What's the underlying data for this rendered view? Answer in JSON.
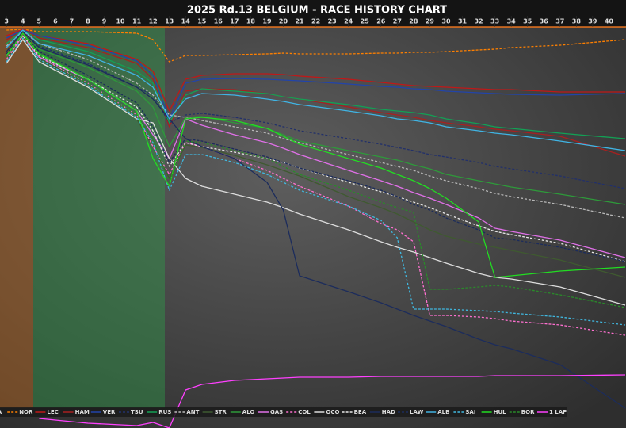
{
  "chart_data": {
    "type": "line",
    "title": "2025 Rd.13 BELGIUM - RACE HISTORY CHART",
    "x": [
      3,
      4,
      5,
      8,
      11,
      12,
      13,
      14,
      15,
      17,
      19,
      20,
      21,
      24,
      26,
      27,
      28,
      29,
      30,
      32,
      33,
      34,
      37,
      41
    ],
    "xlim": [
      2.6,
      41.05
    ],
    "xticks": [
      3,
      4,
      5,
      6,
      7,
      8,
      9,
      10,
      11,
      12,
      13,
      14,
      15,
      16,
      17,
      18,
      19,
      20,
      21,
      22,
      23,
      24,
      25,
      26,
      27,
      28,
      29,
      30,
      31,
      32,
      33,
      34,
      35,
      36,
      37,
      38,
      39,
      40
    ],
    "ylim": [
      0,
      510
    ],
    "series": [
      {
        "name": "PIA",
        "color": "#ff8000",
        "dashed": false,
        "values": [
          506,
          506,
          506,
          506,
          506,
          506,
          506,
          506,
          506,
          506,
          506,
          506,
          506,
          506,
          506,
          506,
          506,
          506,
          506,
          506,
          506,
          506,
          506,
          506
        ]
      },
      {
        "name": "NOR",
        "color": "#ff8000",
        "dashed": true,
        "values": [
          502,
          503,
          500,
          500,
          498,
          490,
          462,
          470,
          470,
          471,
          472,
          473,
          472,
          472,
          473,
          473,
          474,
          474,
          475,
          477,
          478,
          480,
          483,
          490
        ]
      },
      {
        "name": "LEC",
        "color": "#c01818",
        "dashed": false,
        "values": [
          495,
          503,
          495,
          485,
          465,
          450,
          400,
          440,
          445,
          447,
          447,
          446,
          444,
          440,
          436,
          434,
          432,
          431,
          430,
          428,
          427,
          427,
          424,
          424
        ]
      },
      {
        "name": "HAM",
        "color": "#a82020",
        "dashed": false,
        "values": [
          490,
          502,
          492,
          480,
          460,
          440,
          380,
          425,
          428,
          427,
          422,
          418,
          415,
          405,
          398,
          395,
          392,
          388,
          385,
          380,
          377,
          375,
          368,
          343
        ]
      },
      {
        "name": "VER",
        "color": "#2244aa",
        "dashed": false,
        "values": [
          492,
          502,
          495,
          483,
          463,
          445,
          390,
          435,
          440,
          441,
          440,
          439,
          438,
          434,
          431,
          430,
          428,
          427,
          425,
          423,
          422,
          421,
          420,
          422
        ]
      },
      {
        "name": "TSU",
        "color": "#22306a",
        "dashed": true,
        "values": [
          480,
          500,
          482,
          460,
          430,
          420,
          385,
          395,
          397,
          392,
          385,
          380,
          375,
          365,
          358,
          354,
          350,
          345,
          342,
          335,
          330,
          327,
          318,
          302
        ]
      },
      {
        "name": "RUS",
        "color": "#13a055",
        "dashed": false,
        "values": [
          485,
          502,
          490,
          475,
          450,
          435,
          385,
          420,
          428,
          425,
          422,
          418,
          415,
          408,
          402,
          400,
          398,
          395,
          390,
          384,
          380,
          378,
          372,
          365
        ]
      },
      {
        "name": "ANT",
        "color": "#b8b8b8",
        "dashed": true,
        "values": [
          482,
          500,
          485,
          465,
          435,
          420,
          395,
          392,
          388,
          380,
          372,
          365,
          360,
          345,
          335,
          330,
          325,
          318,
          312,
          302,
          296,
          292,
          282,
          265
        ]
      },
      {
        "name": "STR",
        "color": "#3f5a30",
        "dashed": false,
        "values": [
          465,
          494,
          468,
          430,
          390,
          355,
          315,
          357,
          354,
          344,
          332,
          325,
          318,
          292,
          278,
          270,
          260,
          250,
          242,
          232,
          228,
          224,
          212,
          190
        ]
      },
      {
        "name": "ALO",
        "color": "#2e9a3a",
        "dashed": false,
        "values": [
          475,
          500,
          478,
          455,
          425,
          405,
          355,
          392,
          393,
          385,
          378,
          370,
          362,
          350,
          342,
          338,
          332,
          327,
          320,
          312,
          308,
          304,
          295,
          282
        ]
      },
      {
        "name": "GAS",
        "color": "#e070e8",
        "dashed": false,
        "values": [
          470,
          495,
          468,
          440,
          400,
          370,
          340,
          390,
          382,
          370,
          360,
          353,
          345,
          325,
          312,
          305,
          297,
          290,
          282,
          265,
          252,
          248,
          237,
          215
        ]
      },
      {
        "name": "COL",
        "color": "#ff70d0",
        "dashed": true,
        "values": [
          465,
          495,
          468,
          435,
          395,
          355,
          320,
          360,
          355,
          340,
          325,
          315,
          305,
          280,
          258,
          250,
          235,
          142,
          142,
          140,
          138,
          135,
          130,
          117
        ]
      },
      {
        "name": "OCO",
        "color": "#dddddd",
        "dashed": false,
        "values": [
          460,
          490,
          462,
          430,
          390,
          385,
          340,
          315,
          305,
          295,
          285,
          278,
          270,
          250,
          235,
          228,
          222,
          215,
          208,
          195,
          190,
          188,
          178,
          155
        ]
      },
      {
        "name": "BEA",
        "color": "#e8e8e8",
        "dashed": true,
        "values": [
          468,
          495,
          470,
          440,
          405,
          375,
          330,
          360,
          355,
          348,
          340,
          335,
          328,
          310,
          298,
          292,
          285,
          278,
          270,
          255,
          248,
          244,
          233,
          210
        ]
      },
      {
        "name": "HAD",
        "color": "#1c2c5c",
        "dashed": false,
        "values": [
          475,
          500,
          480,
          458,
          430,
          415,
          390,
          365,
          355,
          340,
          310,
          275,
          192,
          172,
          158,
          150,
          142,
          135,
          128,
          112,
          105,
          100,
          80,
          25
        ]
      },
      {
        "name": "LAW",
        "color": "#1c2c5c",
        "dashed": true,
        "values": [
          472,
          498,
          475,
          445,
          410,
          380,
          335,
          365,
          362,
          352,
          342,
          335,
          328,
          312,
          300,
          292,
          282,
          275,
          265,
          250,
          240,
          238,
          228,
          210
        ]
      },
      {
        "name": "ALB",
        "color": "#40b4e4",
        "dashed": false,
        "values": [
          480,
          502,
          485,
          470,
          445,
          430,
          390,
          415,
          422,
          420,
          415,
          412,
          408,
          400,
          394,
          390,
          388,
          385,
          380,
          375,
          372,
          370,
          362,
          350
        ]
      },
      {
        "name": "SAI",
        "color": "#40b8e0",
        "dashed": true,
        "values": [
          462,
          492,
          465,
          432,
          392,
          360,
          300,
          345,
          345,
          335,
          320,
          310,
          300,
          280,
          262,
          240,
          150,
          150,
          150,
          148,
          147,
          145,
          140,
          130
        ]
      },
      {
        "name": "HUL",
        "color": "#22dd22",
        "dashed": false,
        "values": [
          470,
          498,
          472,
          440,
          400,
          340,
          305,
          390,
          392,
          388,
          378,
          368,
          358,
          340,
          328,
          320,
          312,
          302,
          290,
          260,
          190,
          192,
          198,
          203
        ]
      },
      {
        "name": "BOR",
        "color": "#2a8a2a",
        "dashed": true,
        "values": [
          468,
          496,
          470,
          435,
          395,
          365,
          310,
          362,
          360,
          350,
          340,
          330,
          320,
          300,
          285,
          278,
          272,
          175,
          175,
          178,
          180,
          178,
          168,
          152
        ]
      },
      {
        "name": "1 LAP",
        "color": "#ff40ff",
        "dashed": false,
        "values": [
          null,
          null,
          12,
          6,
          3,
          7,
          0,
          48,
          55,
          60,
          62,
          63,
          64,
          64,
          65,
          65,
          65,
          65,
          65,
          65,
          66,
          66,
          66,
          67
        ]
      }
    ]
  }
}
